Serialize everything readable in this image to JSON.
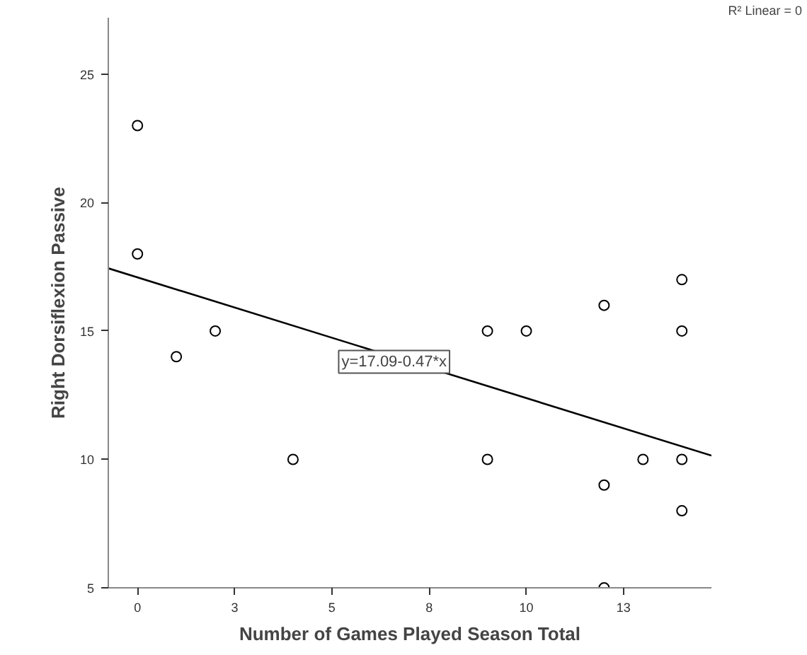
{
  "chart_data": {
    "type": "scatter",
    "xlabel": "Number of Games Played Season Total",
    "ylabel": "Right Dorsiflexion Passive",
    "xlim": [
      -0.75,
      14.76
    ],
    "ylim": [
      5,
      27.2
    ],
    "xticks": [
      0,
      {
        "value": 2.5,
        "label": "3"
      },
      5,
      {
        "value": 7.5,
        "label": "8"
      },
      10,
      {
        "value": 12.5,
        "label": "13"
      }
    ],
    "yticks": [
      5,
      10,
      15,
      20,
      25
    ],
    "grid": false,
    "marker": "circle",
    "line_style": "solid",
    "series": [
      {
        "color": "#000000",
        "x": [
          0,
          0,
          1,
          2,
          4,
          9,
          9,
          10,
          12,
          12,
          12,
          13,
          14,
          14,
          14,
          14
        ],
        "values": [
          23,
          18,
          14,
          15,
          10,
          15,
          10,
          15,
          16,
          9,
          5,
          10,
          17,
          15,
          10,
          8
        ]
      },
      {
        "type": "line",
        "marker": "none",
        "color": "#000000",
        "x": [
          -0.75,
          14.76
        ],
        "values": [
          17.44,
          10.15
        ]
      }
    ],
    "annotations": [
      {
        "text": "y=17.09-0.47*x",
        "x": 6.6,
        "y": 13.8
      },
      "R² Linear = 0"
    ]
  }
}
